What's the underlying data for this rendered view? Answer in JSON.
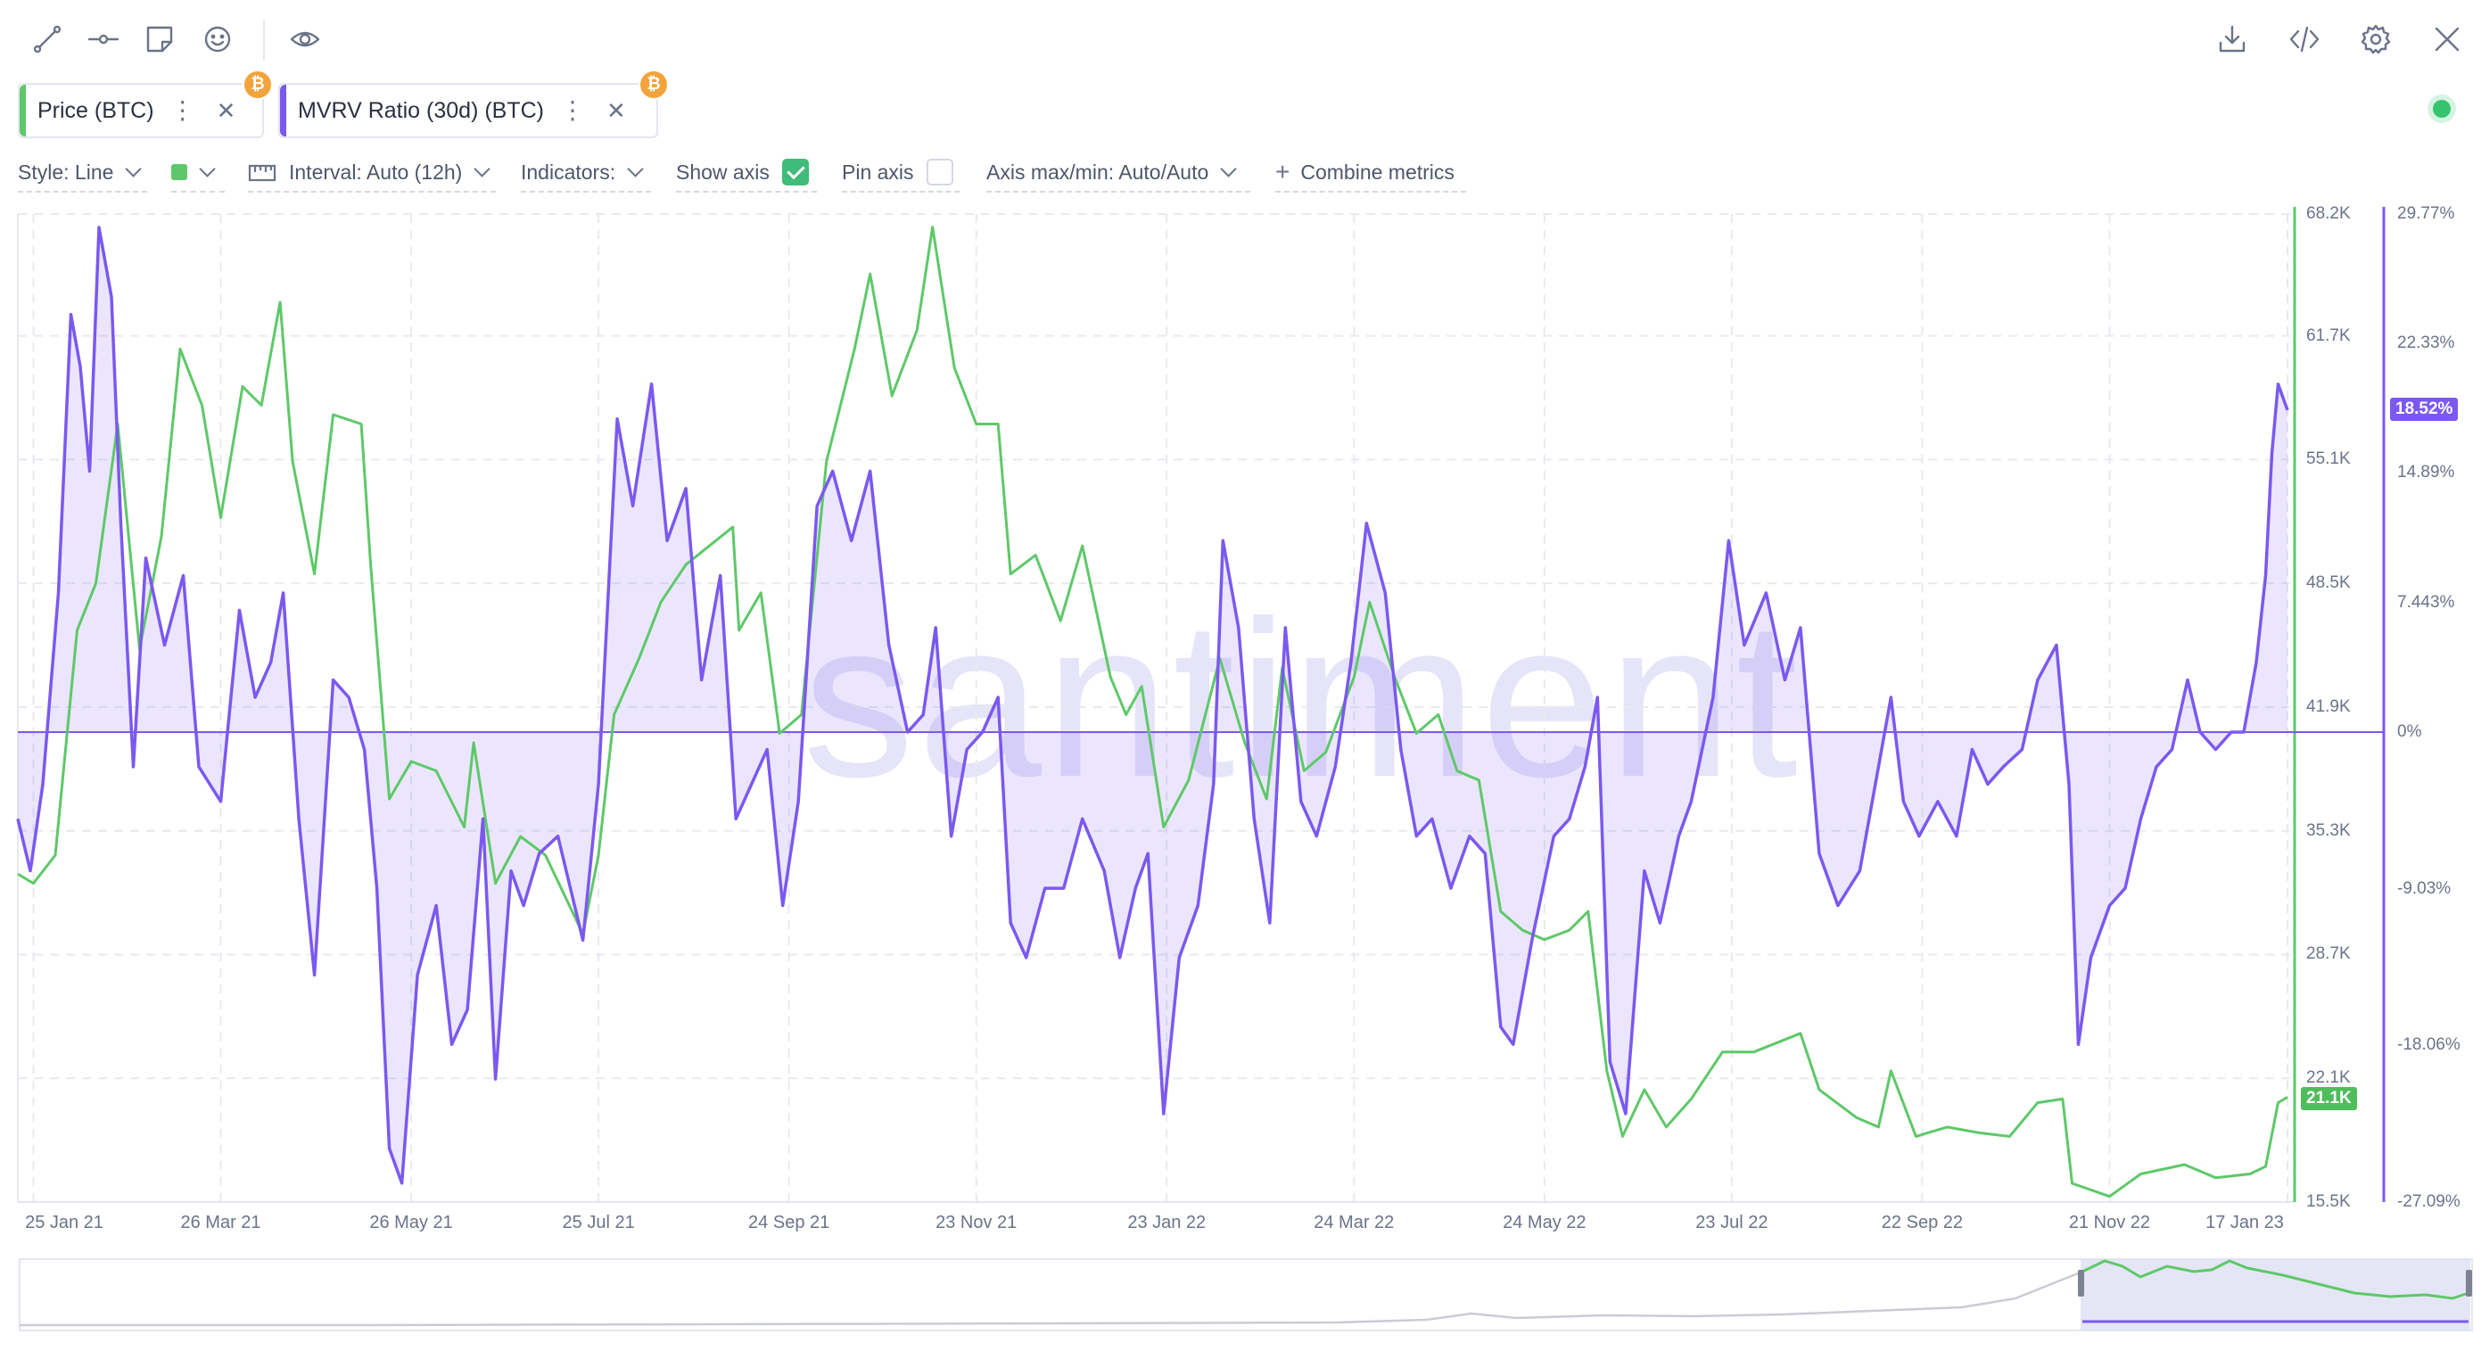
{
  "toolbar": {
    "left_icons": [
      "line-tool-icon",
      "horizontal-line-tool-icon",
      "note-icon",
      "emoji-icon",
      "eye-icon"
    ],
    "right_icons": [
      "download-icon",
      "code-embed-icon",
      "settings-gear-icon",
      "close-icon"
    ]
  },
  "metrics": [
    {
      "label": "Price (BTC)",
      "color": "#5ec869",
      "asset_badge": "₿"
    },
    {
      "label": "MVRV Ratio (30d) (BTC)",
      "color": "#7b58f0",
      "asset_badge": "₿"
    }
  ],
  "controls": {
    "style": "Style: Line",
    "interval": "Interval: Auto (12h)",
    "indicators": "Indicators:",
    "show_axis": "Show axis",
    "show_axis_checked": true,
    "pin_axis": "Pin axis",
    "pin_axis_checked": false,
    "axis_minmax": "Axis max/min: Auto/Auto",
    "combine": "Combine metrics",
    "combine_icon": "plus-icon",
    "series_color": "#5ec869"
  },
  "watermark": "santiment",
  "chart_data": {
    "type": "line",
    "x_tick_labels": [
      "25 Jan 21",
      "26 Mar 21",
      "26 May 21",
      "25 Jul 21",
      "24 Sep 21",
      "23 Nov 21",
      "23 Jan 22",
      "24 Mar 22",
      "24 May 22",
      "23 Jul 22",
      "22 Sep 22",
      "21 Nov 22",
      "17 Jan 23"
    ],
    "x_dates": [
      "2021-01-25",
      "2021-03-26",
      "2021-05-26",
      "2021-07-25",
      "2021-09-24",
      "2021-11-23",
      "2022-01-23",
      "2022-03-24",
      "2022-05-24",
      "2022-07-23",
      "2022-09-22",
      "2022-11-21",
      "2023-01-17"
    ],
    "price_axis": {
      "ticks": [
        "68.2K",
        "61.7K",
        "55.1K",
        "48.5K",
        "41.9K",
        "35.3K",
        "28.7K",
        "22.1K",
        "15.5K"
      ],
      "range": [
        15500,
        68200
      ],
      "current_label": "21.1K",
      "color": "#5ec869"
    },
    "mvrv_axis": {
      "ticks": [
        "29.77%",
        "22.33%",
        "14.89%",
        "7.443%",
        "0%",
        "-9.03%",
        "-18.06%",
        "-27.09%"
      ],
      "current_label": "18.52%",
      "color": "#7b58f0"
    },
    "series": [
      {
        "name": "Price (BTC)",
        "color": "#5ec869",
        "unit": "USD",
        "points": [
          [
            "2021-01-20",
            33000
          ],
          [
            "2021-01-25",
            32500
          ],
          [
            "2021-02-01",
            34000
          ],
          [
            "2021-02-08",
            46000
          ],
          [
            "2021-02-14",
            48500
          ],
          [
            "2021-02-21",
            57000
          ],
          [
            "2021-02-28",
            45000
          ],
          [
            "2021-03-07",
            51000
          ],
          [
            "2021-03-13",
            61000
          ],
          [
            "2021-03-20",
            58000
          ],
          [
            "2021-03-26",
            52000
          ],
          [
            "2021-04-02",
            59000
          ],
          [
            "2021-04-08",
            58000
          ],
          [
            "2021-04-14",
            63500
          ],
          [
            "2021-04-18",
            55000
          ],
          [
            "2021-04-25",
            49000
          ],
          [
            "2021-05-01",
            57500
          ],
          [
            "2021-05-10",
            57000
          ],
          [
            "2021-05-13",
            49500
          ],
          [
            "2021-05-19",
            37000
          ],
          [
            "2021-05-26",
            39000
          ],
          [
            "2021-06-03",
            38500
          ],
          [
            "2021-06-12",
            35500
          ],
          [
            "2021-06-15",
            40000
          ],
          [
            "2021-06-22",
            32500
          ],
          [
            "2021-06-30",
            35000
          ],
          [
            "2021-07-08",
            34000
          ],
          [
            "2021-07-20",
            29800
          ],
          [
            "2021-07-25",
            34000
          ],
          [
            "2021-07-30",
            41500
          ],
          [
            "2021-08-07",
            44500
          ],
          [
            "2021-08-14",
            47500
          ],
          [
            "2021-08-22",
            49500
          ],
          [
            "2021-09-06",
            51500
          ],
          [
            "2021-09-08",
            46000
          ],
          [
            "2021-09-15",
            48000
          ],
          [
            "2021-09-21",
            40500
          ],
          [
            "2021-09-28",
            41500
          ],
          [
            "2021-10-06",
            55000
          ],
          [
            "2021-10-15",
            61000
          ],
          [
            "2021-10-20",
            65000
          ],
          [
            "2021-10-27",
            58500
          ],
          [
            "2021-11-04",
            62000
          ],
          [
            "2021-11-09",
            67500
          ],
          [
            "2021-11-16",
            60000
          ],
          [
            "2021-11-23",
            57000
          ],
          [
            "2021-11-30",
            57000
          ],
          [
            "2021-12-04",
            49000
          ],
          [
            "2021-12-12",
            50000
          ],
          [
            "2021-12-20",
            46500
          ],
          [
            "2021-12-27",
            50500
          ],
          [
            "2022-01-05",
            43500
          ],
          [
            "2022-01-10",
            41500
          ],
          [
            "2022-01-15",
            43000
          ],
          [
            "2022-01-22",
            35500
          ],
          [
            "2022-01-30",
            38000
          ],
          [
            "2022-02-09",
            44500
          ],
          [
            "2022-02-17",
            40000
          ],
          [
            "2022-02-24",
            37000
          ],
          [
            "2022-03-01",
            44000
          ],
          [
            "2022-03-08",
            38500
          ],
          [
            "2022-03-15",
            39500
          ],
          [
            "2022-03-24",
            43500
          ],
          [
            "2022-03-29",
            47500
          ],
          [
            "2022-04-06",
            43500
          ],
          [
            "2022-04-13",
            40500
          ],
          [
            "2022-04-20",
            41500
          ],
          [
            "2022-04-26",
            38500
          ],
          [
            "2022-05-03",
            38000
          ],
          [
            "2022-05-10",
            31000
          ],
          [
            "2022-05-17",
            30000
          ],
          [
            "2022-05-24",
            29500
          ],
          [
            "2022-06-01",
            30000
          ],
          [
            "2022-06-07",
            31000
          ],
          [
            "2022-06-13",
            22500
          ],
          [
            "2022-06-18",
            19000
          ],
          [
            "2022-06-25",
            21500
          ],
          [
            "2022-07-02",
            19500
          ],
          [
            "2022-07-10",
            21000
          ],
          [
            "2022-07-20",
            23500
          ],
          [
            "2022-07-30",
            23500
          ],
          [
            "2022-08-14",
            24500
          ],
          [
            "2022-08-20",
            21500
          ],
          [
            "2022-09-01",
            20000
          ],
          [
            "2022-09-08",
            19500
          ],
          [
            "2022-09-12",
            22500
          ],
          [
            "2022-09-20",
            19000
          ],
          [
            "2022-09-30",
            19500
          ],
          [
            "2022-10-10",
            19200
          ],
          [
            "2022-10-20",
            19000
          ],
          [
            "2022-10-29",
            20800
          ],
          [
            "2022-11-06",
            21000
          ],
          [
            "2022-11-09",
            16500
          ],
          [
            "2022-11-21",
            15800
          ],
          [
            "2022-12-01",
            17000
          ],
          [
            "2022-12-15",
            17500
          ],
          [
            "2022-12-25",
            16800
          ],
          [
            "2023-01-05",
            17000
          ],
          [
            "2023-01-10",
            17400
          ],
          [
            "2023-01-14",
            20800
          ],
          [
            "2023-01-17",
            21100
          ]
        ]
      },
      {
        "name": "MVRV Ratio (30d) (BTC)",
        "color": "#7b58f0",
        "unit": "%",
        "points": [
          [
            "2021-01-20",
            -5
          ],
          [
            "2021-01-24",
            -8
          ],
          [
            "2021-01-28",
            -3
          ],
          [
            "2021-02-02",
            8
          ],
          [
            "2021-02-06",
            24
          ],
          [
            "2021-02-09",
            21
          ],
          [
            "2021-02-12",
            15
          ],
          [
            "2021-02-15",
            29
          ],
          [
            "2021-02-19",
            25
          ],
          [
            "2021-02-22",
            12
          ],
          [
            "2021-02-26",
            -2
          ],
          [
            "2021-03-02",
            10
          ],
          [
            "2021-03-08",
            5
          ],
          [
            "2021-03-14",
            9
          ],
          [
            "2021-03-19",
            -2
          ],
          [
            "2021-03-26",
            -4
          ],
          [
            "2021-04-01",
            7
          ],
          [
            "2021-04-06",
            2
          ],
          [
            "2021-04-11",
            4
          ],
          [
            "2021-04-15",
            8
          ],
          [
            "2021-04-20",
            -5
          ],
          [
            "2021-04-25",
            -14
          ],
          [
            "2021-05-01",
            3
          ],
          [
            "2021-05-06",
            2
          ],
          [
            "2021-05-11",
            -1
          ],
          [
            "2021-05-15",
            -9
          ],
          [
            "2021-05-19",
            -24
          ],
          [
            "2021-05-23",
            -26
          ],
          [
            "2021-05-28",
            -14
          ],
          [
            "2021-06-03",
            -10
          ],
          [
            "2021-06-08",
            -18
          ],
          [
            "2021-06-13",
            -16
          ],
          [
            "2021-06-18",
            -5
          ],
          [
            "2021-06-22",
            -20
          ],
          [
            "2021-06-27",
            -8
          ],
          [
            "2021-07-01",
            -10
          ],
          [
            "2021-07-06",
            -7
          ],
          [
            "2021-07-12",
            -6
          ],
          [
            "2021-07-20",
            -12
          ],
          [
            "2021-07-25",
            -3
          ],
          [
            "2021-07-31",
            18
          ],
          [
            "2021-08-05",
            13
          ],
          [
            "2021-08-11",
            20
          ],
          [
            "2021-08-16",
            11
          ],
          [
            "2021-08-22",
            14
          ],
          [
            "2021-08-27",
            3
          ],
          [
            "2021-09-02",
            9
          ],
          [
            "2021-09-07",
            -5
          ],
          [
            "2021-09-12",
            -3
          ],
          [
            "2021-09-17",
            -1
          ],
          [
            "2021-09-22",
            -10
          ],
          [
            "2021-09-27",
            -4
          ],
          [
            "2021-10-03",
            13
          ],
          [
            "2021-10-08",
            15
          ],
          [
            "2021-10-14",
            11
          ],
          [
            "2021-10-20",
            15
          ],
          [
            "2021-10-26",
            5
          ],
          [
            "2021-11-01",
            0
          ],
          [
            "2021-11-06",
            1
          ],
          [
            "2021-11-10",
            6
          ],
          [
            "2021-11-15",
            -6
          ],
          [
            "2021-11-20",
            -1
          ],
          [
            "2021-11-25",
            0
          ],
          [
            "2021-11-30",
            2
          ],
          [
            "2021-12-04",
            -11
          ],
          [
            "2021-12-09",
            -13
          ],
          [
            "2021-12-15",
            -9
          ],
          [
            "2021-12-21",
            -9
          ],
          [
            "2021-12-27",
            -5
          ],
          [
            "2022-01-03",
            -8
          ],
          [
            "2022-01-08",
            -13
          ],
          [
            "2022-01-13",
            -9
          ],
          [
            "2022-01-17",
            -7
          ],
          [
            "2022-01-22",
            -22
          ],
          [
            "2022-01-27",
            -13
          ],
          [
            "2022-02-02",
            -10
          ],
          [
            "2022-02-07",
            -3
          ],
          [
            "2022-02-10",
            11
          ],
          [
            "2022-02-15",
            6
          ],
          [
            "2022-02-20",
            -5
          ],
          [
            "2022-02-25",
            -11
          ],
          [
            "2022-03-02",
            6
          ],
          [
            "2022-03-07",
            -4
          ],
          [
            "2022-03-12",
            -6
          ],
          [
            "2022-03-18",
            -2
          ],
          [
            "2022-03-23",
            4
          ],
          [
            "2022-03-28",
            12
          ],
          [
            "2022-04-03",
            8
          ],
          [
            "2022-04-08",
            -1
          ],
          [
            "2022-04-13",
            -6
          ],
          [
            "2022-04-18",
            -5
          ],
          [
            "2022-04-24",
            -9
          ],
          [
            "2022-04-30",
            -6
          ],
          [
            "2022-05-05",
            -7
          ],
          [
            "2022-05-10",
            -17
          ],
          [
            "2022-05-14",
            -18
          ],
          [
            "2022-05-20",
            -12
          ],
          [
            "2022-05-27",
            -6
          ],
          [
            "2022-06-01",
            -5
          ],
          [
            "2022-06-06",
            -2
          ],
          [
            "2022-06-10",
            2
          ],
          [
            "2022-06-14",
            -19
          ],
          [
            "2022-06-19",
            -22
          ],
          [
            "2022-06-25",
            -8
          ],
          [
            "2022-06-30",
            -11
          ],
          [
            "2022-07-06",
            -6
          ],
          [
            "2022-07-10",
            -4
          ],
          [
            "2022-07-17",
            2
          ],
          [
            "2022-07-22",
            11
          ],
          [
            "2022-07-27",
            5
          ],
          [
            "2022-08-03",
            8
          ],
          [
            "2022-08-09",
            3
          ],
          [
            "2022-08-14",
            6
          ],
          [
            "2022-08-20",
            -7
          ],
          [
            "2022-08-26",
            -10
          ],
          [
            "2022-09-02",
            -8
          ],
          [
            "2022-09-08",
            -2
          ],
          [
            "2022-09-12",
            2
          ],
          [
            "2022-09-16",
            -4
          ],
          [
            "2022-09-21",
            -6
          ],
          [
            "2022-09-27",
            -4
          ],
          [
            "2022-10-03",
            -6
          ],
          [
            "2022-10-08",
            -1
          ],
          [
            "2022-10-13",
            -3
          ],
          [
            "2022-10-18",
            -2
          ],
          [
            "2022-10-24",
            -1
          ],
          [
            "2022-10-29",
            3
          ],
          [
            "2022-11-04",
            5
          ],
          [
            "2022-11-08",
            -3
          ],
          [
            "2022-11-11",
            -18
          ],
          [
            "2022-11-15",
            -13
          ],
          [
            "2022-11-21",
            -10
          ],
          [
            "2022-11-26",
            -9
          ],
          [
            "2022-12-01",
            -5
          ],
          [
            "2022-12-06",
            -2
          ],
          [
            "2022-12-11",
            -1
          ],
          [
            "2022-12-16",
            3
          ],
          [
            "2022-12-20",
            0
          ],
          [
            "2022-12-25",
            -1
          ],
          [
            "2022-12-30",
            0
          ],
          [
            "2023-01-03",
            0
          ],
          [
            "2023-01-07",
            4
          ],
          [
            "2023-01-10",
            9
          ],
          [
            "2023-01-12",
            16
          ],
          [
            "2023-01-14",
            20
          ],
          [
            "2023-01-17",
            18.5
          ]
        ]
      }
    ],
    "zero_line": 0,
    "grid": true,
    "legend_position": "top-left"
  }
}
